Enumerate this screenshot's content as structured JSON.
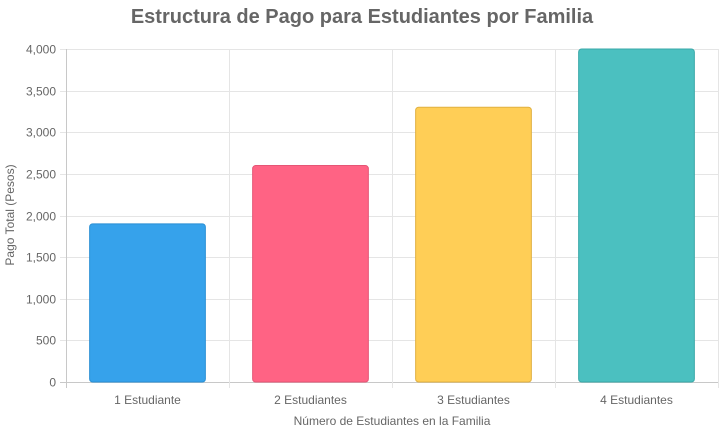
{
  "chart_data": {
    "type": "bar",
    "title": "Estructura de Pago para Estudiantes por Familia",
    "xlabel": "Número de Estudiantes en la Familia",
    "ylabel": "Pago Total (Pesos)",
    "categories": [
      "1 Estudiante",
      "2 Estudiantes",
      "3 Estudiantes",
      "4 Estudiantes"
    ],
    "values": [
      1900,
      2600,
      3300,
      4000
    ],
    "colors": [
      "#36A2EB",
      "#FF6384",
      "#FFCE56",
      "#4BC0C0"
    ],
    "border_colors": [
      "#2a8fd4",
      "#e55575",
      "#e0b040",
      "#3aa9a9"
    ],
    "ylim": [
      0,
      4000
    ],
    "yticks": [
      0,
      500,
      1000,
      1500,
      2000,
      2500,
      3000,
      3500,
      4000
    ],
    "ytick_labels": [
      "0",
      "500",
      "1,000",
      "1,500",
      "2,000",
      "2,500",
      "3,000",
      "3,500",
      "4,000"
    ],
    "grid": true,
    "legend": "none"
  }
}
